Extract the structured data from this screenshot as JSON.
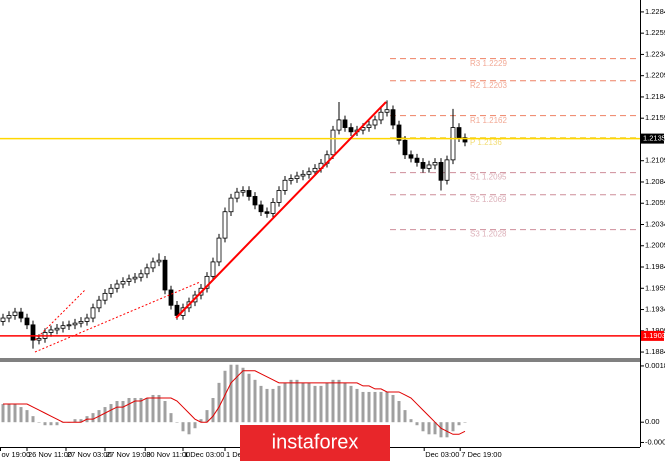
{
  "chart_data": [
    {
      "type": "candlestick",
      "ylim": [
        1.1877,
        1.2298
      ],
      "yticks": [
        1.2284,
        1.2259,
        1.2234,
        1.2209,
        1.2184,
        1.2159,
        1.2134,
        1.2109,
        1.2084,
        1.2059,
        1.2034,
        1.2009,
        1.1984,
        1.1959,
        1.1934,
        1.1909,
        1.1884
      ],
      "xticks": [
        {
          "value": -0.5,
          "label": "ov 19:00"
        },
        {
          "value": 4,
          "label": "26 Nov 11:00"
        },
        {
          "value": 10.5,
          "label": "27 Nov 03:00"
        },
        {
          "value": 17,
          "label": "27 Nov 19:00"
        },
        {
          "value": 23.7,
          "label": "30 Nov 11:00"
        },
        {
          "value": 30,
          "label": "1 Dec 03:00"
        },
        {
          "value": 37,
          "label": "1 Dec 19:00"
        },
        {
          "value": 70.2,
          "label": "Dec 03:00"
        },
        {
          "value": 76.2,
          "label": "7 Dec 19:00"
        }
      ],
      "up_color": "#ffffff",
      "down_color": "#000000",
      "open": [
        1.192,
        1.1924,
        1.1927,
        1.1931,
        1.1924,
        1.1916,
        1.1898,
        1.19,
        1.1907,
        1.191,
        1.1912,
        1.1915,
        1.1916,
        1.1918,
        1.192,
        1.1924,
        1.1936,
        1.1945,
        1.1953,
        1.1959,
        1.1964,
        1.1967,
        1.197,
        1.1972,
        1.1976,
        1.1983,
        1.199,
        1.1992,
        1.1957,
        1.1939,
        1.1927,
        1.1936,
        1.1943,
        1.1951,
        1.1959,
        1.1973,
        1.199,
        1.2018,
        1.2049,
        1.2065,
        1.2072,
        1.2074,
        1.2067,
        1.2057,
        1.2049,
        1.2047,
        1.206,
        1.2074,
        1.2086,
        1.2088,
        1.2091,
        1.2093,
        1.2096,
        1.21,
        1.2106,
        1.2116,
        1.2145,
        1.2157,
        1.2148,
        1.2143,
        1.2145,
        1.2148,
        1.2151,
        1.2157,
        1.2166,
        1.2169,
        1.2151,
        1.2133,
        1.2116,
        1.2112,
        1.2107,
        1.21,
        1.2104,
        1.2107,
        1.2086,
        1.211,
        1.2148,
        1.2136
      ],
      "high": [
        1.1929,
        1.1932,
        1.1936,
        1.1936,
        1.1929,
        1.1921,
        1.1905,
        1.1912,
        1.1915,
        1.1917,
        1.192,
        1.1921,
        1.1923,
        1.1925,
        1.1929,
        1.1941,
        1.195,
        1.1958,
        1.1964,
        1.1969,
        1.1972,
        1.1975,
        1.1977,
        1.1981,
        1.1988,
        1.1995,
        1.2,
        1.1997,
        1.1962,
        1.1944,
        1.1941,
        1.1948,
        1.1956,
        1.1964,
        1.1978,
        1.1995,
        1.2023,
        1.2054,
        1.207,
        1.2077,
        1.2079,
        1.2079,
        1.2072,
        1.2062,
        1.2054,
        1.2065,
        1.2079,
        1.2091,
        1.2093,
        1.2096,
        1.2098,
        1.2101,
        1.2105,
        1.2111,
        1.2121,
        1.215,
        1.2178,
        1.2162,
        1.2153,
        1.215,
        1.2153,
        1.2156,
        1.2162,
        1.2171,
        1.218,
        1.2174,
        1.2156,
        1.2138,
        1.2121,
        1.2117,
        1.2112,
        1.2109,
        1.2112,
        1.2112,
        1.2115,
        1.217,
        1.2153,
        1.2141
      ],
      "low": [
        1.1915,
        1.1919,
        1.1922,
        1.1919,
        1.1911,
        1.1888,
        1.1893,
        1.1895,
        1.1902,
        1.1905,
        1.1907,
        1.191,
        1.1911,
        1.1913,
        1.1915,
        1.1919,
        1.1931,
        1.194,
        1.1948,
        1.1954,
        1.1959,
        1.1962,
        1.1965,
        1.1967,
        1.1971,
        1.1978,
        1.1985,
        1.1952,
        1.1934,
        1.1922,
        1.1922,
        1.1931,
        1.1938,
        1.1946,
        1.1954,
        1.1968,
        1.1985,
        1.2013,
        1.2044,
        1.206,
        1.2067,
        1.2062,
        1.2052,
        1.2044,
        1.2042,
        1.2042,
        1.2055,
        1.2069,
        1.2081,
        1.2083,
        1.2086,
        1.2088,
        1.2091,
        1.2095,
        1.2101,
        1.2111,
        1.214,
        1.2143,
        1.2138,
        1.2138,
        1.214,
        1.2143,
        1.2146,
        1.2152,
        1.2161,
        1.2146,
        1.2128,
        1.2111,
        1.2107,
        1.2102,
        1.2095,
        1.2095,
        1.2099,
        1.2074,
        1.2081,
        1.2105,
        1.2131,
        1.2126
      ],
      "close": [
        1.1924,
        1.1927,
        1.1931,
        1.1924,
        1.1916,
        1.1898,
        1.19,
        1.1907,
        1.191,
        1.1912,
        1.1915,
        1.1916,
        1.1918,
        1.192,
        1.1924,
        1.1936,
        1.1945,
        1.1953,
        1.1959,
        1.1964,
        1.1967,
        1.197,
        1.1972,
        1.1976,
        1.1983,
        1.199,
        1.1992,
        1.1957,
        1.1939,
        1.1927,
        1.1936,
        1.1943,
        1.1951,
        1.1959,
        1.1973,
        1.199,
        1.2018,
        1.2049,
        1.2065,
        1.2072,
        1.2074,
        1.2067,
        1.2057,
        1.2049,
        1.2047,
        1.206,
        1.2074,
        1.2086,
        1.2088,
        1.2091,
        1.2093,
        1.2096,
        1.21,
        1.2106,
        1.2116,
        1.2145,
        1.2157,
        1.2148,
        1.2143,
        1.2145,
        1.2148,
        1.2151,
        1.2157,
        1.2166,
        1.2169,
        1.2151,
        1.2133,
        1.2116,
        1.2112,
        1.2107,
        1.21,
        1.2104,
        1.2107,
        1.2086,
        1.211,
        1.2148,
        1.2136,
        1.2131
      ],
      "levels": [
        {
          "value": 1.2229,
          "label": "R3 1.2229",
          "color": "#e8603c"
        },
        {
          "value": 1.2203,
          "label": "R2 1.2203",
          "color": "#e8603c"
        },
        {
          "value": 1.2162,
          "label": "R1 1.2162",
          "color": "#e8603c"
        },
        {
          "value": 1.2136,
          "label": "P 1.2136",
          "color": "#e8c000"
        },
        {
          "value": 1.2095,
          "label": "S1 1.2095",
          "color": "#c07080"
        },
        {
          "value": 1.2069,
          "label": "S2 1.2069",
          "color": "#c07080"
        },
        {
          "value": 1.2028,
          "label": "S3 1.2028",
          "color": "#c07080"
        }
      ],
      "price_lines": [
        {
          "value": 1.1903,
          "color": "#ff0000",
          "box_color": "#ff0000"
        },
        {
          "value": 1.2135,
          "color": "#ffd700",
          "box_color": "#000000"
        }
      ]
    },
    {
      "type": "macd",
      "ylim": [
        -0.00082,
        0.00199
      ],
      "yticks": [
        0.00186,
        {
          "value": 0,
          "label": "0.00"
        },
        -0.00067
      ],
      "histogram_color": "#a0a0a0",
      "signal_color": "#e00000",
      "histogram": [
        0.0006,
        0.0006,
        0.0006,
        0.0005,
        0.0004,
        0.0002,
        0,
        -0.0001,
        -0.0001,
        -0.0001,
        0,
        0,
        0.0001,
        0.0001,
        0.0002,
        0.0003,
        0.0004,
        0.0005,
        0.0006,
        0.0007,
        0.0007,
        0.0008,
        0.0008,
        0.0008,
        0.0008,
        0.0009,
        0.0009,
        0.0007,
        0.0003,
        0,
        -0.0003,
        -0.0004,
        -0.0002,
        0.0001,
        0.0004,
        0.0008,
        0.0013,
        0.0017,
        0.0019,
        0.0019,
        0.0018,
        0.0016,
        0.0014,
        0.0012,
        0.0011,
        0.0011,
        0.0012,
        0.0013,
        0.0014,
        0.0014,
        0.0013,
        0.0013,
        0.0012,
        0.0012,
        0.0013,
        0.0014,
        0.0014,
        0.0013,
        0.0012,
        0.0011,
        0.001,
        0.001,
        0.001,
        0.001,
        0.001,
        0.0009,
        0.0007,
        0.0004,
        0.0001,
        -0.0001,
        -0.0003,
        -0.0004,
        -0.0004,
        -0.0005,
        -0.0005,
        -0.0003,
        -0.0001,
        0
      ],
      "signal": [
        0.0006,
        0.0006,
        0.0006,
        0.0006,
        0.0006,
        0.0005,
        0.0004,
        0.0003,
        0.0002,
        0.0001,
        0,
        0,
        0,
        0,
        0.0001,
        0.0001,
        0.0002,
        0.0003,
        0.0004,
        0.0005,
        0.0005,
        0.0006,
        0.0007,
        0.0007,
        0.0008,
        0.0008,
        0.0008,
        0.0008,
        0.0008,
        0.0007,
        0.0005,
        0.0003,
        0.0001,
        0,
        0,
        0.0002,
        0.0005,
        0.0009,
        0.0013,
        0.0015,
        0.0017,
        0.0017,
        0.0017,
        0.0016,
        0.0015,
        0.0014,
        0.0013,
        0.0013,
        0.0013,
        0.0013,
        0.0013,
        0.0013,
        0.0013,
        0.0013,
        0.0013,
        0.0013,
        0.0013,
        0.0013,
        0.0013,
        0.0013,
        0.0012,
        0.0012,
        0.0011,
        0.0011,
        0.001,
        0.001,
        0.001,
        0.0009,
        0.0008,
        0.0006,
        0.0004,
        0.0002,
        0,
        -0.0002,
        -0.0003,
        -0.0004,
        -0.0004,
        -0.0003
      ]
    }
  ],
  "watermark": "instaforex"
}
